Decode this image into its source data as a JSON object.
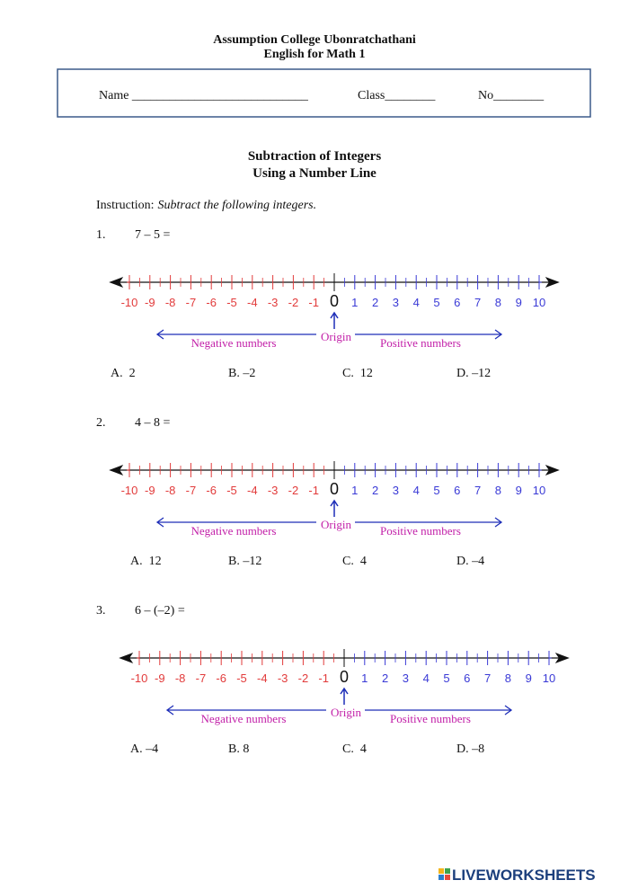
{
  "header": {
    "school": "Assumption College Ubonratchathani",
    "course": "English for Math 1"
  },
  "student_info": {
    "name": "Name ____________________________",
    "class": "Class________",
    "no": "No________"
  },
  "title": {
    "line1": "Subtraction of Integers",
    "line2": "Using a Number Line"
  },
  "instruction": {
    "label": "Instruction:",
    "text": "Subtract the following integers."
  },
  "number_line": {
    "labels": [
      -10,
      -9,
      -8,
      -7,
      -6,
      -5,
      -4,
      -3,
      -2,
      -1,
      0,
      1,
      2,
      3,
      4,
      5,
      6,
      7,
      8,
      9,
      10
    ],
    "origin": "Origin",
    "negative": "Negative numbers",
    "positive": "Positive numbers"
  },
  "questions": [
    {
      "number": "1.",
      "expression": "7 – 5 =",
      "options": [
        "A.  2",
        "B. –2",
        "C.  12",
        "D. –12"
      ]
    },
    {
      "number": "2.",
      "expression": "4 – 8 =",
      "options": [
        "A.  12",
        "B. –12",
        "C.  4",
        "D. –4"
      ]
    },
    {
      "number": "3.",
      "expression": "6 – (–2) =",
      "options": [
        "A. –4",
        "B. 8",
        "C.  4",
        "D. –8"
      ]
    }
  ],
  "footer": {
    "brand": "LIVEWORKSHEETS"
  }
}
